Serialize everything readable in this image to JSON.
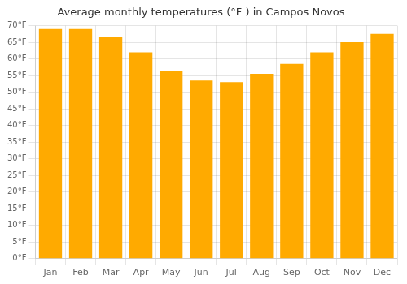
{
  "chart_data": {
    "type": "bar",
    "title": "Average monthly temperatures (°F ) in Campos Novos",
    "categories": [
      "Jan",
      "Feb",
      "Mar",
      "Apr",
      "May",
      "Jun",
      "Jul",
      "Aug",
      "Sep",
      "Oct",
      "Nov",
      "Dec"
    ],
    "values": [
      69,
      69,
      66.5,
      62,
      56.5,
      53.5,
      53,
      55.5,
      58.5,
      62,
      65,
      67.5
    ],
    "color": "#FFAA00",
    "ylim": [
      0,
      70
    ],
    "yticks": [
      {
        "value": 0,
        "label": "0°F"
      },
      {
        "value": 5,
        "label": "5°F"
      },
      {
        "value": 10,
        "label": "10°F"
      },
      {
        "value": 15,
        "label": "15°F"
      },
      {
        "value": 20,
        "label": "20°F"
      },
      {
        "value": 25,
        "label": "25°F"
      },
      {
        "value": 30,
        "label": "30°F"
      },
      {
        "value": 35,
        "label": "35°F"
      },
      {
        "value": 40,
        "label": "40°F"
      },
      {
        "value": 45,
        "label": "45°F"
      },
      {
        "value": 50,
        "label": "50°F"
      },
      {
        "value": 55,
        "label": "55°F"
      },
      {
        "value": 60,
        "label": "60°F"
      },
      {
        "value": 65,
        "label": "65°F"
      },
      {
        "value": 70,
        "label": "70°F"
      }
    ],
    "grid": true
  }
}
